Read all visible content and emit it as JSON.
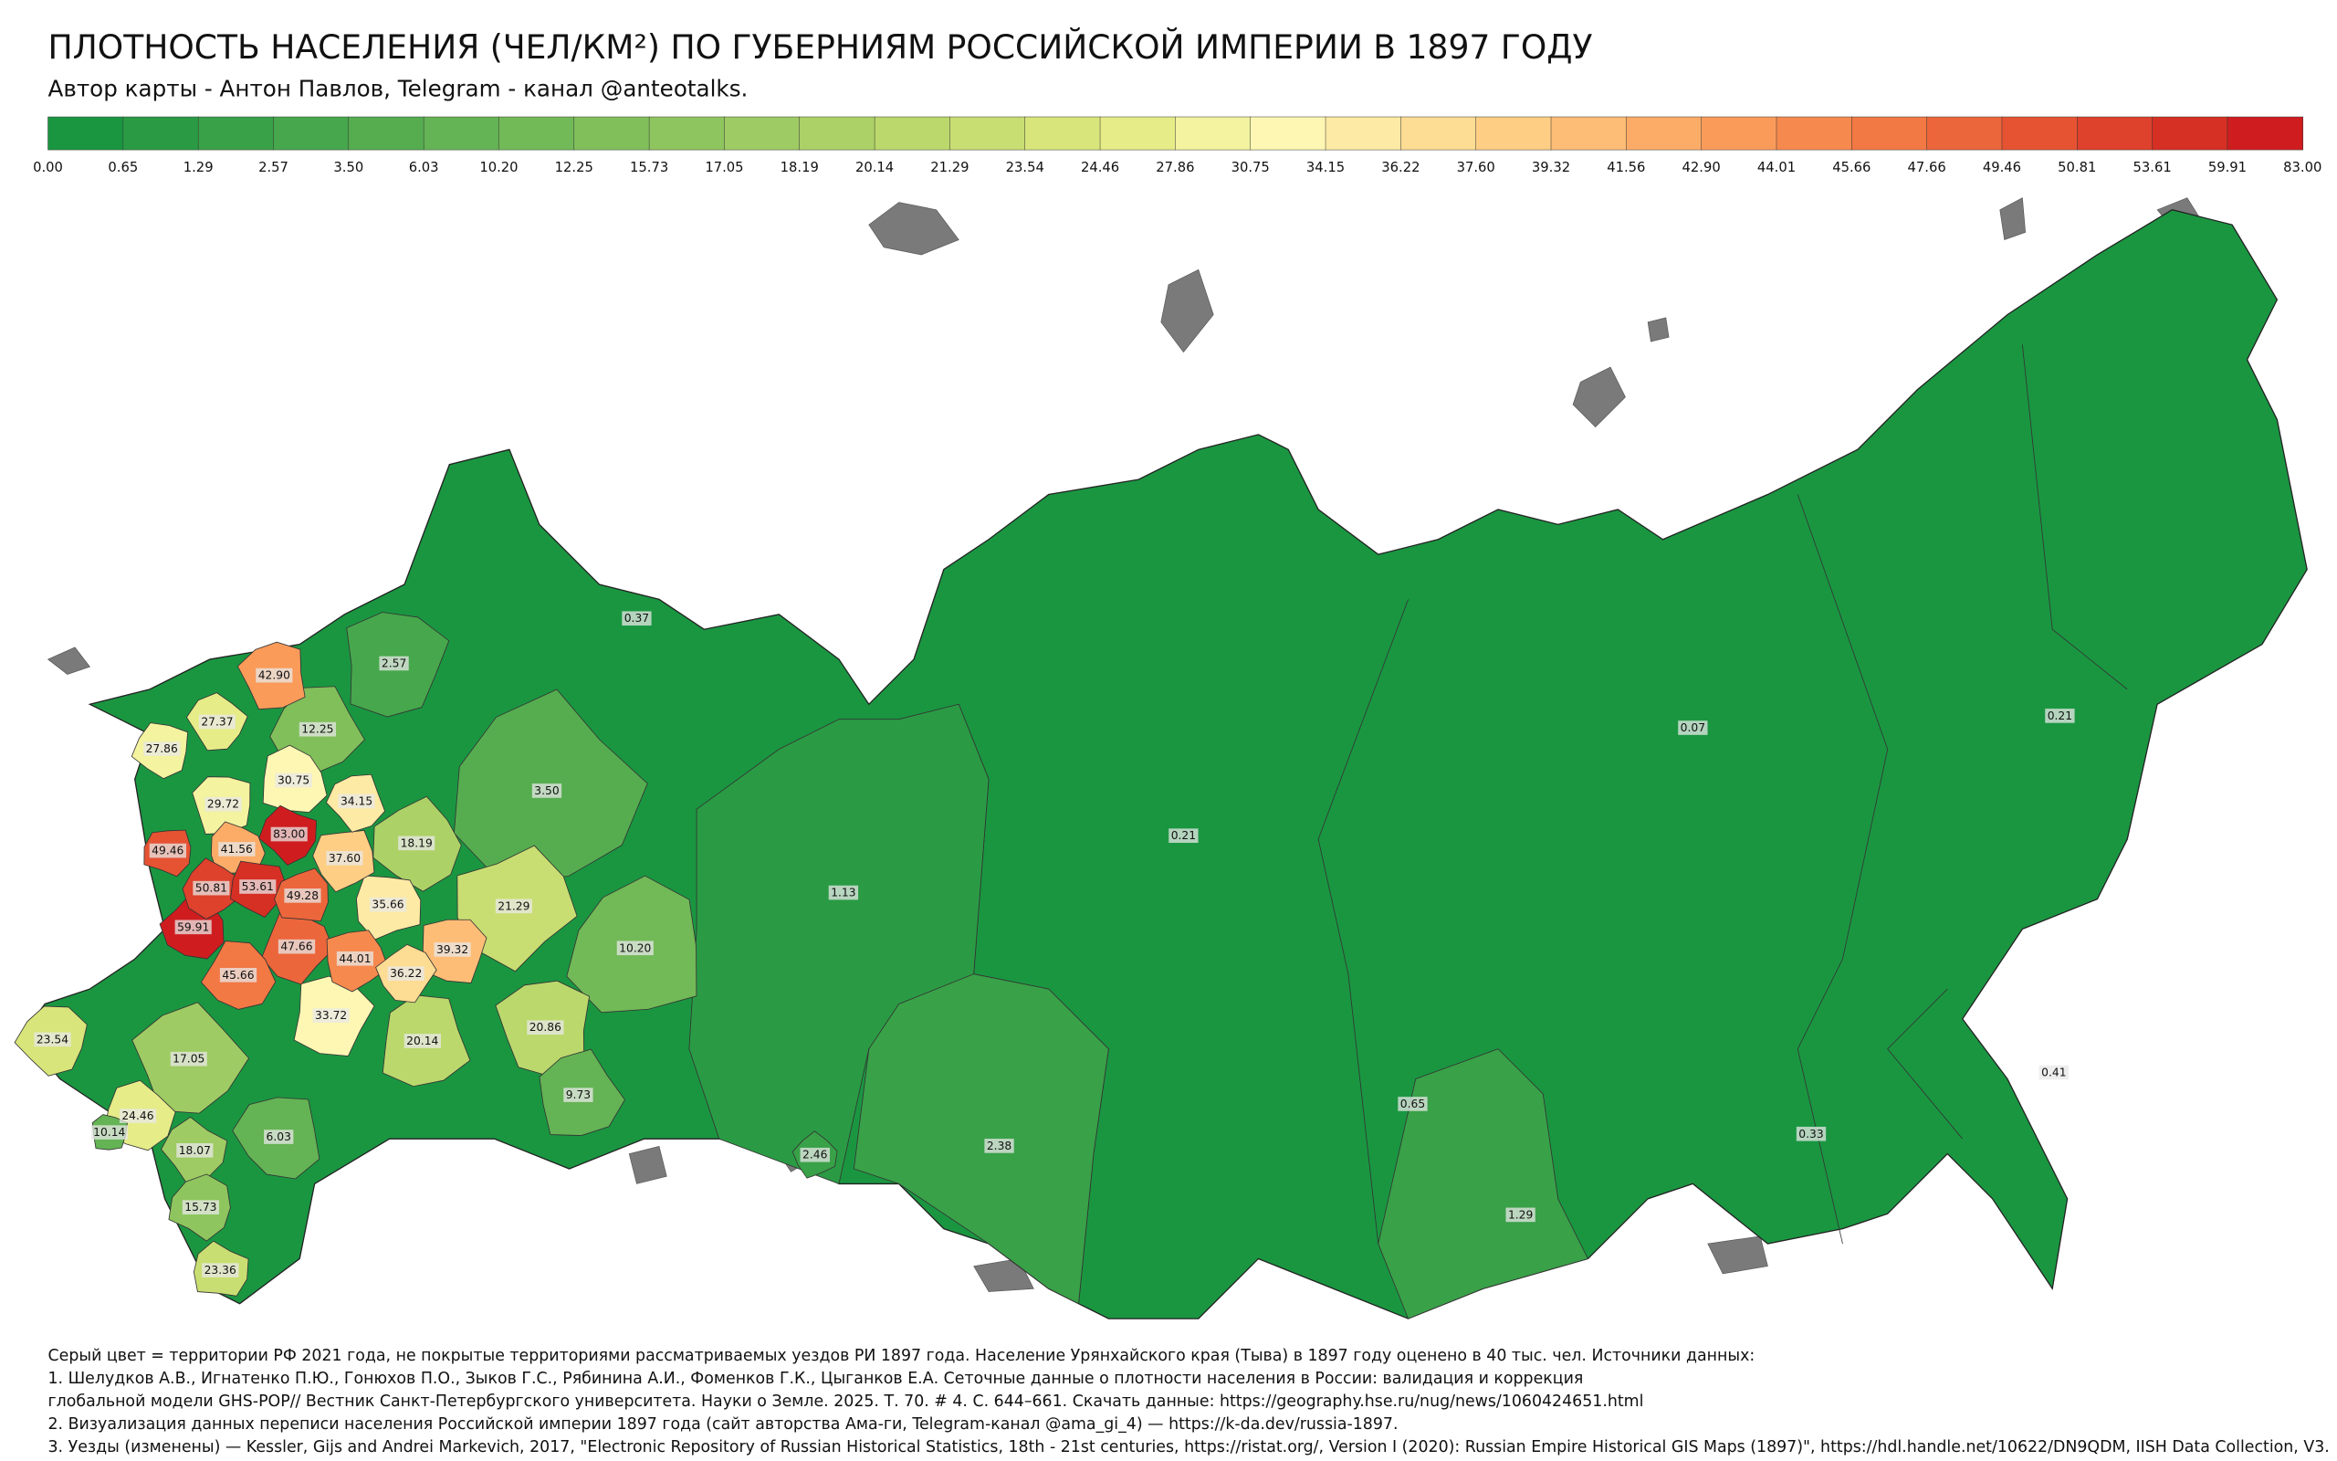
{
  "header": {
    "title": "ПЛОТНОСТЬ НАСЕЛЕНИЯ (ЧЕЛ/КМ²) ПО ГУБЕРНИЯМ РОССИЙСКОЙ ИМПЕРИИ В 1897 ГОДУ",
    "subtitle": "Автор карты - Антон Павлов, Telegram - канал @anteotalks."
  },
  "legend": {
    "colors": [
      "#1a9641",
      "#2a9b44",
      "#39a148",
      "#47a74c",
      "#56ad50",
      "#64b354",
      "#72b957",
      "#81bf5b",
      "#8fc55f",
      "#9ecb63",
      "#acd167",
      "#bbd86c",
      "#c9de72",
      "#d8e57a",
      "#e6ec88",
      "#f3f3a0",
      "#fdf7b3",
      "#fdeaa4",
      "#fddc93",
      "#fdce84",
      "#fdbd76",
      "#fcac67",
      "#fa9b5a",
      "#f68a4e",
      "#f27844",
      "#ec663b",
      "#e55333",
      "#de412c",
      "#d62f24",
      "#cf1d1f"
    ],
    "ticks": [
      "0.00",
      "0.65",
      "1.29",
      "2.57",
      "3.50",
      "6.03",
      "10.20",
      "12.25",
      "15.73",
      "17.05",
      "18.19",
      "20.14",
      "21.29",
      "23.54",
      "24.46",
      "27.86",
      "30.75",
      "34.15",
      "36.22",
      "37.60",
      "39.32",
      "41.56",
      "42.90",
      "44.01",
      "45.66",
      "47.66",
      "49.46",
      "50.81",
      "53.61",
      "59.91",
      "83.00"
    ]
  },
  "region_labels": [
    "0.37",
    "2.57",
    "42.90",
    "12.25",
    "27.37",
    "27.86",
    "30.75",
    "29.72",
    "34.15",
    "3.50",
    "83.00",
    "49.46",
    "41.56",
    "37.60",
    "18.19",
    "50.81",
    "53.61",
    "49.28",
    "35.66",
    "21.29",
    "59.91",
    "47.66",
    "39.32",
    "10.20",
    "44.01",
    "36.22",
    "45.66",
    "33.72",
    "20.86",
    "20.14",
    "17.05",
    "23.54",
    "24.46",
    "10.14",
    "6.03",
    "9.73",
    "18.07",
    "15.73",
    "23.36",
    "1.13",
    "0.21",
    "2.46",
    "2.38",
    "0.07",
    "0.21",
    "0.65",
    "1.29",
    "0.33",
    "0.41"
  ],
  "notes": [
    "Серый цвет = территории РФ 2021 года, не покрытые территориями рассматриваемых уездов РИ 1897 года. Население Урянхайского края (Тыва) в 1897 году оценено в 40 тыс. чел. Источники данных:",
    "1. Шелудков А.В., Игнатенко П.Ю., Гонюхов П.О., Зыков Г.С., Рябинина А.И., Фоменков Г.К., Цыганков Е.А. Сеточные данные о плотности населения в России: валидация и коррекция",
    "глобальной модели GHS-POP// Вестник Санкт-Петербургского университета. Науки о Земле. 2025. Т. 70. # 4. С. 644–661. Скачать данные: https://geography.hse.ru/nug/news/1060424651.html",
    "2. Визуализация данных переписи населения Российской империи 1897 года (сайт авторства Ама-ги, Telegram-канал @ama_gi_4) — https://k-da.dev/russia-1897.",
    "3. Уезды (изменены) — Kessler, Gijs and Andrei Markevich, 2017, \"Electronic Repository of Russian Historical Statistics, 18th - 21st centuries, https://ristat.org/, Version I (2020): Russian Empire Historical GIS Maps (1897)\", https://hdl.handle.net/10622/DN9QDM, IISH Data Collection, V3."
  ]
}
